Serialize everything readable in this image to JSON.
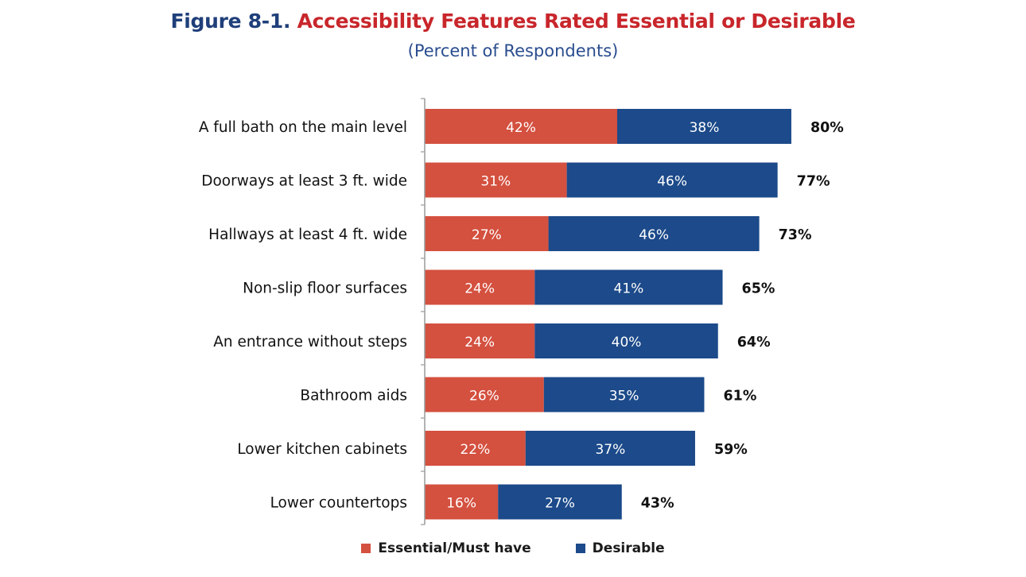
{
  "header": {
    "figure_number": "Figure 8-1.",
    "title": "Accessibility Features Rated Essential or Desirable",
    "subtitle": "(Percent of Respondents)"
  },
  "colors": {
    "essential": "#d4503f",
    "desirable": "#1c4a8a",
    "title_blue": "#1f3f7a",
    "title_red": "#c8262b"
  },
  "chart_data": {
    "type": "bar",
    "orientation": "horizontal",
    "stacked": true,
    "title": "Accessibility Features Rated Essential or Desirable",
    "subtitle": "(Percent of Respondents)",
    "categories": [
      "A full bath on the main level",
      "Doorways at least 3 ft. wide",
      "Hallways at least 4 ft. wide",
      "Non-slip floor surfaces",
      "An entrance without steps",
      "Bathroom aids",
      "Lower kitchen cabinets",
      "Lower countertops"
    ],
    "series": [
      {
        "name": "Essential/Must have",
        "values": [
          42,
          31,
          27,
          24,
          24,
          26,
          22,
          16
        ]
      },
      {
        "name": "Desirable",
        "values": [
          38,
          46,
          46,
          41,
          40,
          35,
          37,
          27
        ]
      }
    ],
    "totals": [
      80,
      77,
      73,
      65,
      64,
      61,
      59,
      43
    ],
    "value_suffix": "%",
    "xlim": [
      0,
      84
    ],
    "grid": false,
    "legend_position": "bottom"
  }
}
